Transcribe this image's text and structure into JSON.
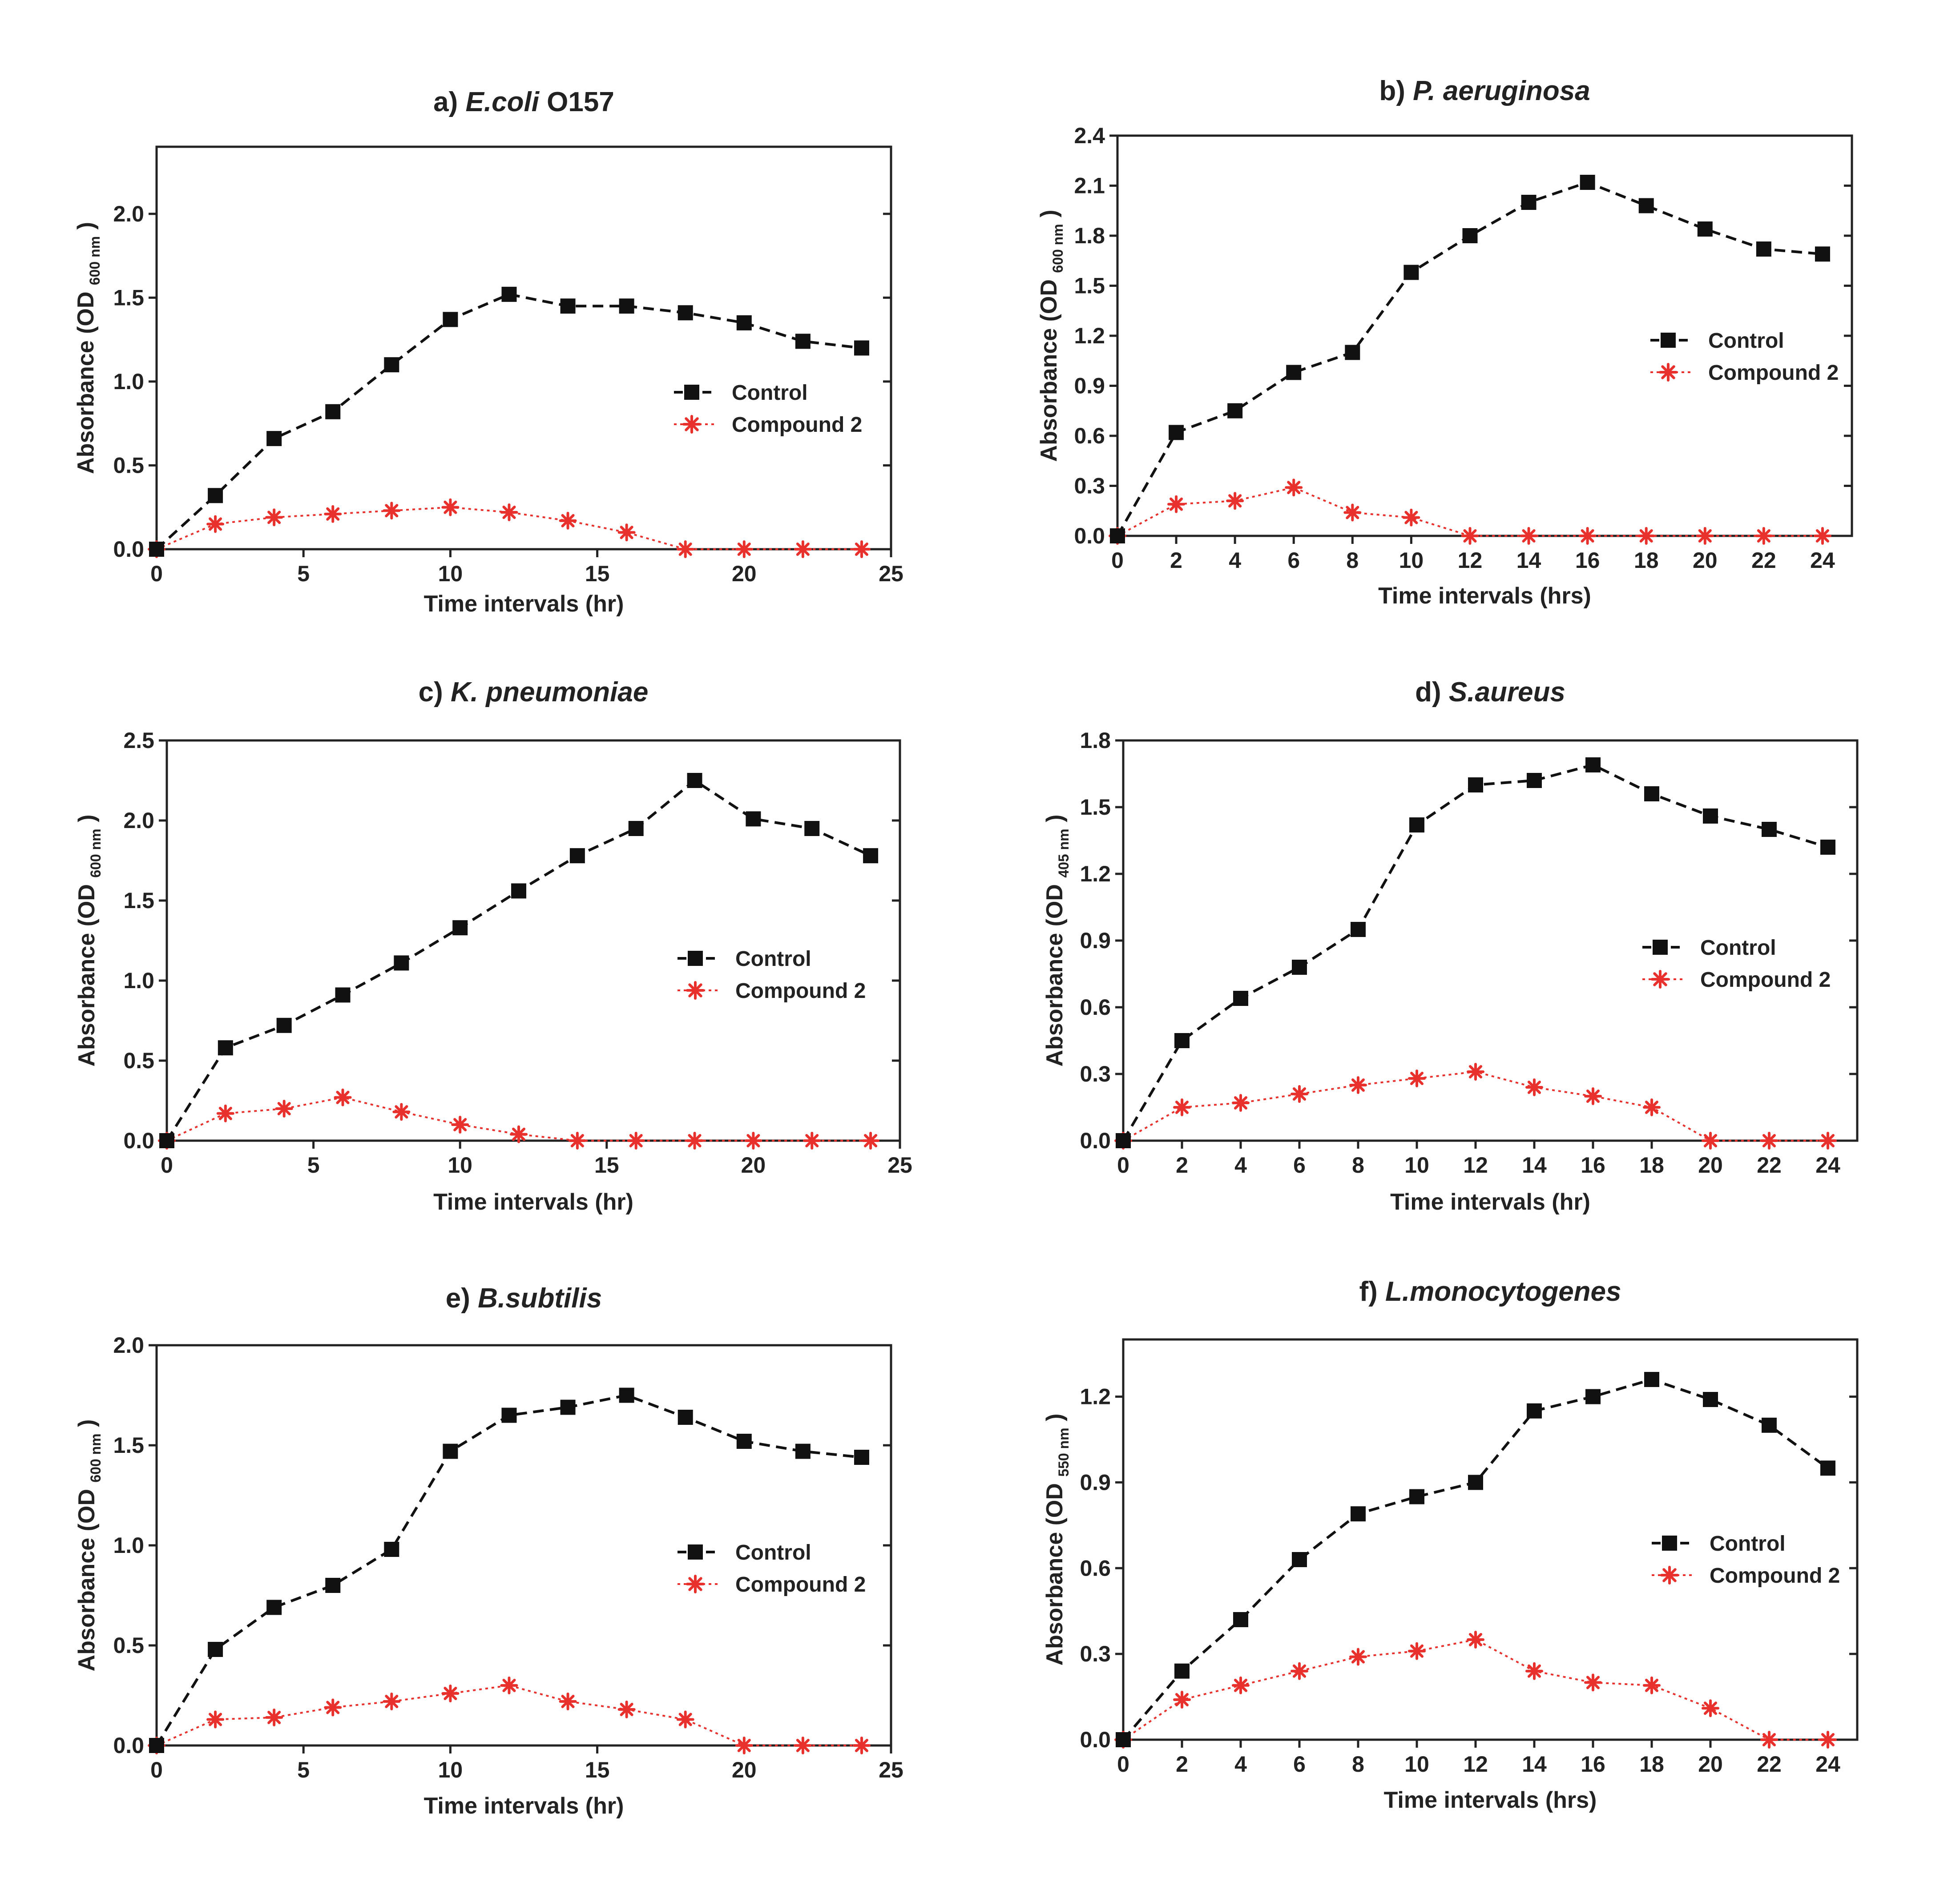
{
  "figure": {
    "series_names": [
      "Control",
      "Compound 2"
    ],
    "colors": {
      "control": "#111111",
      "compound": "#e8312c",
      "axis": "#222222"
    }
  },
  "chart_data": [
    {
      "id": "a",
      "type": "line",
      "title_prefix": "a)",
      "title_italic": "E.coli",
      "title_suffix": "O157",
      "xlabel": "Time intervals (hr)",
      "ylabel_main": "Absorbance (OD",
      "ylabel_sub": "600 nm",
      "ylabel_close": ")",
      "xlim": [
        0,
        25
      ],
      "ylim": [
        0,
        2.4
      ],
      "xticks": [
        0,
        5,
        10,
        15,
        20,
        25
      ],
      "xtick_labels": [
        "0",
        "5",
        "10",
        "15",
        "20",
        "25"
      ],
      "yticks": [
        0,
        0.5,
        1,
        1.5,
        2
      ],
      "ytick_labels": [
        "0.0",
        "0.5",
        "1.0",
        "1.5",
        "2.0"
      ],
      "x": [
        0,
        2,
        4,
        6,
        8,
        10,
        12,
        14,
        16,
        18,
        20,
        22,
        24
      ],
      "series": [
        {
          "name": "Control",
          "values": [
            0,
            0.32,
            0.66,
            0.82,
            1.1,
            1.37,
            1.52,
            1.45,
            1.45,
            1.41,
            1.35,
            1.24,
            1.2
          ]
        },
        {
          "name": "Compound 2",
          "values": [
            0,
            0.15,
            0.19,
            0.21,
            0.23,
            0.25,
            0.22,
            0.17,
            0.1,
            0,
            0,
            0,
            0
          ]
        }
      ],
      "legend": [
        "Control",
        "Compound 2"
      ]
    },
    {
      "id": "b",
      "type": "line",
      "title_prefix": "b)",
      "title_italic": "P. aeruginosa",
      "title_suffix": "",
      "xlabel": "Time intervals (hrs)",
      "ylabel_main": "Absorbance  (OD",
      "ylabel_sub": "600 nm",
      "ylabel_close": ")",
      "xlim": [
        0,
        25
      ],
      "ylim": [
        0,
        2.4
      ],
      "xticks": [
        0,
        2,
        4,
        6,
        8,
        10,
        12,
        14,
        16,
        18,
        20,
        22,
        24
      ],
      "xtick_labels": [
        "0",
        "2",
        "4",
        "6",
        "8",
        "10",
        "12",
        "14",
        "16",
        "18",
        "20",
        "22",
        "24"
      ],
      "yticks": [
        0,
        0.3,
        0.6,
        0.9,
        1.2,
        1.5,
        1.8,
        2.1,
        2.4
      ],
      "ytick_labels": [
        "0.0",
        "0.3",
        "0.6",
        "0.9",
        "1.2",
        "1.5",
        "1.8",
        "2.1",
        "2.4"
      ],
      "x": [
        0,
        2,
        4,
        6,
        8,
        10,
        12,
        14,
        16,
        18,
        20,
        22,
        24
      ],
      "series": [
        {
          "name": "Control",
          "values": [
            0,
            0.62,
            0.75,
            0.98,
            1.1,
            1.58,
            1.8,
            2.0,
            2.12,
            1.98,
            1.84,
            1.72,
            1.69
          ]
        },
        {
          "name": "Compound 2",
          "values": [
            0,
            0.19,
            0.21,
            0.29,
            0.14,
            0.11,
            0,
            0,
            0,
            0,
            0,
            0,
            0
          ]
        }
      ],
      "legend": [
        "Control",
        "Compound 2"
      ]
    },
    {
      "id": "c",
      "type": "line",
      "title_prefix": "c)",
      "title_italic": "K. pneumoniae",
      "title_suffix": "",
      "xlabel": "Time intervals (hr)",
      "ylabel_main": "Absorbance (OD",
      "ylabel_sub": "600 nm",
      "ylabel_close": ")",
      "xlim": [
        0,
        25
      ],
      "ylim": [
        0,
        2.5
      ],
      "xticks": [
        0,
        5,
        10,
        15,
        20,
        25
      ],
      "xtick_labels": [
        "0",
        "5",
        "10",
        "15",
        "20",
        "25"
      ],
      "yticks": [
        0,
        0.5,
        1,
        1.5,
        2,
        2.5
      ],
      "ytick_labels": [
        "0.0",
        "0.5",
        "1.0",
        "1.5",
        "2.0",
        "2.5"
      ],
      "x": [
        0,
        2,
        4,
        6,
        8,
        10,
        12,
        14,
        16,
        18,
        20,
        22,
        24
      ],
      "series": [
        {
          "name": "Control",
          "values": [
            0,
            0.58,
            0.72,
            0.91,
            1.11,
            1.33,
            1.56,
            1.78,
            1.95,
            2.25,
            2.01,
            1.95,
            1.78
          ]
        },
        {
          "name": "Compound 2",
          "values": [
            0,
            0.17,
            0.2,
            0.27,
            0.18,
            0.1,
            0.04,
            0,
            0,
            0,
            0,
            0,
            0
          ]
        }
      ],
      "legend": [
        "Control",
        "Compound 2"
      ]
    },
    {
      "id": "d",
      "type": "line",
      "title_prefix": "d)",
      "title_italic": "S.aureus",
      "title_suffix": "",
      "xlabel": "Time intervals (hr)",
      "ylabel_main": "Absorbance (OD",
      "ylabel_sub": "405 nm",
      "ylabel_close": ")",
      "xlim": [
        0,
        25
      ],
      "ylim": [
        0,
        1.8
      ],
      "xticks": [
        0,
        2,
        4,
        6,
        8,
        10,
        12,
        14,
        16,
        18,
        20,
        22,
        24
      ],
      "xtick_labels": [
        "0",
        "2",
        "4",
        "6",
        "8",
        "10",
        "12",
        "14",
        "16",
        "18",
        "20",
        "22",
        "24"
      ],
      "yticks": [
        0,
        0.3,
        0.6,
        0.9,
        1.2,
        1.5,
        1.8
      ],
      "ytick_labels": [
        "0.0",
        "0.3",
        "0.6",
        "0.9",
        "1.2",
        "1.5",
        "1.8"
      ],
      "x": [
        0,
        2,
        4,
        6,
        8,
        10,
        12,
        14,
        16,
        18,
        20,
        22,
        24
      ],
      "series": [
        {
          "name": "Control",
          "values": [
            0,
            0.45,
            0.64,
            0.78,
            0.95,
            1.42,
            1.6,
            1.62,
            1.69,
            1.56,
            1.46,
            1.4,
            1.32
          ]
        },
        {
          "name": "Compound 2",
          "values": [
            0,
            0.15,
            0.17,
            0.21,
            0.25,
            0.28,
            0.31,
            0.24,
            0.2,
            0.15,
            0,
            0,
            0
          ]
        }
      ],
      "legend": [
        "Control",
        "Compound 2"
      ]
    },
    {
      "id": "e",
      "type": "line",
      "title_prefix": "e)",
      "title_italic": "B.subtilis",
      "title_suffix": "",
      "xlabel": "Time intervals (hr)",
      "ylabel_main": "Absorbance (OD",
      "ylabel_sub": "600 nm",
      "ylabel_close": ")",
      "xlim": [
        0,
        25
      ],
      "ylim": [
        0,
        2.0
      ],
      "xticks": [
        0,
        5,
        10,
        15,
        20,
        25
      ],
      "xtick_labels": [
        "0",
        "5",
        "10",
        "15",
        "20",
        "25"
      ],
      "yticks": [
        0,
        0.5,
        1,
        1.5,
        2
      ],
      "ytick_labels": [
        "0.0",
        "0.5",
        "1.0",
        "1.5",
        "2.0"
      ],
      "x": [
        0,
        2,
        4,
        6,
        8,
        10,
        12,
        14,
        16,
        18,
        20,
        22,
        24
      ],
      "series": [
        {
          "name": "Control",
          "values": [
            0,
            0.48,
            0.69,
            0.8,
            0.98,
            1.47,
            1.65,
            1.69,
            1.75,
            1.64,
            1.52,
            1.47,
            1.44
          ]
        },
        {
          "name": "Compound 2",
          "values": [
            0,
            0.13,
            0.14,
            0.19,
            0.22,
            0.26,
            0.3,
            0.22,
            0.18,
            0.13,
            0,
            0,
            0
          ]
        }
      ],
      "legend": [
        "Control",
        "Compound 2"
      ]
    },
    {
      "id": "f",
      "type": "line",
      "title_prefix": "f)",
      "title_italic": "L.monocytogenes",
      "title_suffix": "",
      "xlabel": "Time intervals (hrs)",
      "ylabel_main": "Absorbance (OD",
      "ylabel_sub": "550 nm",
      "ylabel_close": ")",
      "xlim": [
        0,
        25
      ],
      "ylim": [
        0,
        1.4
      ],
      "xticks": [
        0,
        2,
        4,
        6,
        8,
        10,
        12,
        14,
        16,
        18,
        20,
        22,
        24
      ],
      "xtick_labels": [
        "0",
        "2",
        "4",
        "6",
        "8",
        "10",
        "12",
        "14",
        "16",
        "18",
        "20",
        "22",
        "24"
      ],
      "yticks": [
        0,
        0.3,
        0.6,
        0.9,
        1.2
      ],
      "ytick_labels": [
        "0.0",
        "0.3",
        "0.6",
        "0.9",
        "1.2"
      ],
      "x": [
        0,
        2,
        4,
        6,
        8,
        10,
        12,
        14,
        16,
        18,
        20,
        22,
        24
      ],
      "series": [
        {
          "name": "Control",
          "values": [
            0,
            0.24,
            0.42,
            0.63,
            0.79,
            0.85,
            0.9,
            1.15,
            1.2,
            1.26,
            1.19,
            1.1,
            0.95
          ]
        },
        {
          "name": "Compound 2",
          "values": [
            0,
            0.14,
            0.19,
            0.24,
            0.29,
            0.31,
            0.35,
            0.24,
            0.2,
            0.19,
            0.11,
            0,
            0
          ]
        }
      ],
      "legend": [
        "Control",
        "Compound 2"
      ]
    }
  ]
}
